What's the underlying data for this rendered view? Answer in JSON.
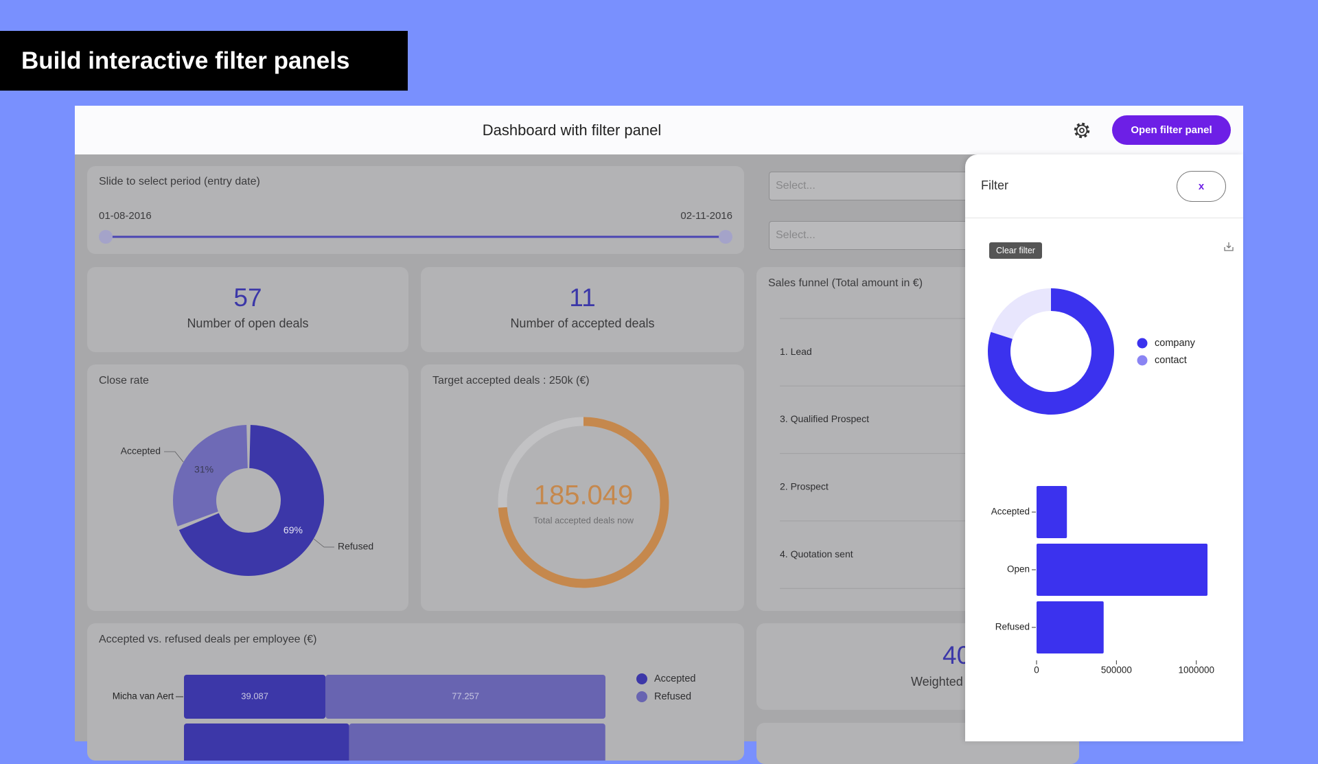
{
  "banner": {
    "title": "Build interactive filter panels"
  },
  "header": {
    "title": "Dashboard with filter panel",
    "button": "Open filter panel"
  },
  "period": {
    "label": "Slide to select period (entry date)",
    "start": "01-08-2016",
    "end": "02-11-2016"
  },
  "selects": [
    "Select...",
    "Select..."
  ],
  "kpis": [
    {
      "value": 57,
      "label": "Number of open deals"
    },
    {
      "value": 11,
      "label": "Number of accepted deals"
    }
  ],
  "weighted": {
    "value": 40,
    "label": "Weighted"
  },
  "filter": {
    "title": "Filter",
    "close": "x",
    "clear": "Clear filter"
  },
  "chart_data": [
    {
      "type": "pie",
      "title": "Close rate",
      "categories": [
        "Accepted",
        "Refused"
      ],
      "values": [
        31,
        69
      ],
      "value_labels": [
        "31%",
        "69%"
      ],
      "colors": [
        "#6e6ab6",
        "#3c37a8"
      ]
    },
    {
      "type": "gauge",
      "title": "Target accepted deals : 250k (€)",
      "subtitle": "Total accepted deals now",
      "values": [
        185049
      ],
      "value_labels": [
        "185.049"
      ],
      "ylim": [
        0,
        250000
      ],
      "color": "#c5884d",
      "track_color": "#c2c2c4"
    },
    {
      "type": "funnel",
      "title": "Sales funnel (Total amount in €)",
      "categories": [
        "1. Lead",
        "3. Qualified Prospect",
        "2. Prospect",
        "4. Quotation sent"
      ]
    },
    {
      "type": "hbar",
      "stacked": true,
      "title": "Accepted vs. refused deals per employee (€)",
      "categories": [
        "Micha van Aert",
        null
      ],
      "series": [
        {
          "name": "Accepted",
          "color": "#3c37a8",
          "values": [
            39087,
            45600
          ],
          "value_labels": [
            "39.087",
            null
          ]
        },
        {
          "name": "Refused",
          "color": "#6864b1",
          "values": [
            77257,
            70700
          ],
          "value_labels": [
            "77.257",
            null
          ]
        }
      ]
    },
    {
      "type": "pie",
      "categories": [
        "company",
        "contact"
      ],
      "values": [
        80,
        20
      ],
      "colors": [
        "#3b32ee",
        "#8a84f3"
      ],
      "legend": "right"
    },
    {
      "type": "hbar",
      "categories": [
        "Accepted",
        "Open",
        "Refused"
      ],
      "values": [
        190000,
        1070000,
        420000
      ],
      "color": "#3b32ee",
      "xlim": [
        0,
        1100000
      ],
      "xticks": [
        0,
        500000,
        1000000
      ]
    }
  ]
}
